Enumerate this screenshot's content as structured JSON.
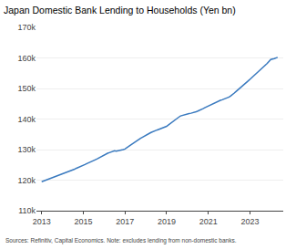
{
  "chart_data": {
    "type": "line",
    "title": "Japan Domestic Bank Lending to Households (Yen bn)",
    "annotations": [
      "Sources: Refinitiv, Capital Economics. Note: excludes lending from non-domestic banks."
    ],
    "color": "#3a7abf",
    "grid": "y",
    "xlim": [
      2012.75,
      2024.6
    ],
    "xticks": [
      2013,
      2015,
      2017,
      2019,
      2021,
      2023
    ],
    "ylim": [
      110000,
      170000
    ],
    "yticks": [
      {
        "value": 110000,
        "label": "110k"
      },
      {
        "value": 120000,
        "label": "120k"
      },
      {
        "value": 130000,
        "label": "130k"
      },
      {
        "value": 140000,
        "label": "140k"
      },
      {
        "value": 150000,
        "label": "150k"
      },
      {
        "value": 160000,
        "label": "160k"
      },
      {
        "value": 170000,
        "label": "170k"
      }
    ],
    "x": [
      2013.0,
      2013.08,
      2013.17,
      2013.25,
      2013.33,
      2013.42,
      2013.5,
      2013.58,
      2013.67,
      2013.75,
      2013.83,
      2013.92,
      2014.0,
      2014.08,
      2014.17,
      2014.25,
      2014.33,
      2014.42,
      2014.5,
      2014.58,
      2014.67,
      2014.75,
      2014.83,
      2014.92,
      2015.0,
      2015.08,
      2015.17,
      2015.25,
      2015.33,
      2015.42,
      2015.5,
      2015.58,
      2015.67,
      2015.75,
      2015.83,
      2015.92,
      2016.0,
      2016.08,
      2016.17,
      2016.25,
      2016.33,
      2016.42,
      2016.5,
      2016.58,
      2016.67,
      2016.75,
      2016.83,
      2016.92,
      2017.0,
      2017.08,
      2017.17,
      2017.25,
      2017.33,
      2017.42,
      2017.5,
      2017.58,
      2017.67,
      2017.75,
      2017.83,
      2017.92,
      2018.0,
      2018.08,
      2018.17,
      2018.25,
      2018.33,
      2018.42,
      2018.5,
      2018.58,
      2018.67,
      2018.75,
      2018.83,
      2018.92,
      2019.0,
      2019.08,
      2019.17,
      2019.25,
      2019.33,
      2019.42,
      2019.5,
      2019.58,
      2019.67,
      2019.75,
      2019.83,
      2019.92,
      2020.0,
      2020.08,
      2020.17,
      2020.25,
      2020.33,
      2020.42,
      2020.5,
      2020.58,
      2020.67,
      2020.75,
      2020.83,
      2020.92,
      2021.0,
      2021.08,
      2021.17,
      2021.25,
      2021.33,
      2021.42,
      2021.5,
      2021.58,
      2021.67,
      2021.75,
      2021.83,
      2021.92,
      2022.0,
      2022.08,
      2022.17,
      2022.25,
      2022.33,
      2022.42,
      2022.5,
      2022.58,
      2022.67,
      2022.75,
      2022.83,
      2022.92,
      2023.0,
      2023.08,
      2023.17,
      2023.25,
      2023.33,
      2023.42,
      2023.5,
      2023.58,
      2023.67,
      2023.75,
      2023.83,
      2023.92,
      2024.0,
      2024.17,
      2024.33
    ],
    "values": [
      119500,
      119700,
      119900,
      120200,
      120300,
      120500,
      120700,
      120900,
      121200,
      121400,
      121600,
      121800,
      122100,
      122300,
      122500,
      122800,
      123000,
      123200,
      123400,
      123600,
      123900,
      124100,
      124300,
      124500,
      124800,
      125100,
      125400,
      125700,
      126000,
      126200,
      126500,
      126700,
      127000,
      127300,
      127700,
      128000,
      128200,
      128500,
      128800,
      129000,
      129200,
      129400,
      129600,
      129500,
      129600,
      129700,
      129800,
      130000,
      130200,
      130500,
      131000,
      131400,
      131800,
      132200,
      132500,
      133000,
      133400,
      133700,
      134000,
      134300,
      134500,
      135000,
      135300,
      135600,
      135900,
      136100,
      136300,
      136500,
      136700,
      136900,
      137100,
      137300,
      137600,
      138000,
      138500,
      139000,
      139400,
      139800,
      140200,
      140600,
      141000,
      141200,
      141400,
      141600,
      141700,
      141800,
      141900,
      142000,
      142200,
      142400,
      142600,
      142800,
      143100,
      143400,
      143700,
      144000,
      144300,
      144600,
      144900,
      145200,
      145500,
      145700,
      145900,
      146100,
      146300,
      146500,
      146700,
      146900,
      147200,
      147600,
      148000,
      148500,
      149000,
      149500,
      150000,
      150500,
      151000,
      151500,
      152000,
      152500,
      153000,
      153500,
      154000,
      154500,
      155000,
      155500,
      156000,
      156500,
      157000,
      157500,
      158200,
      158900,
      159500,
      159800,
      160200
    ]
  }
}
